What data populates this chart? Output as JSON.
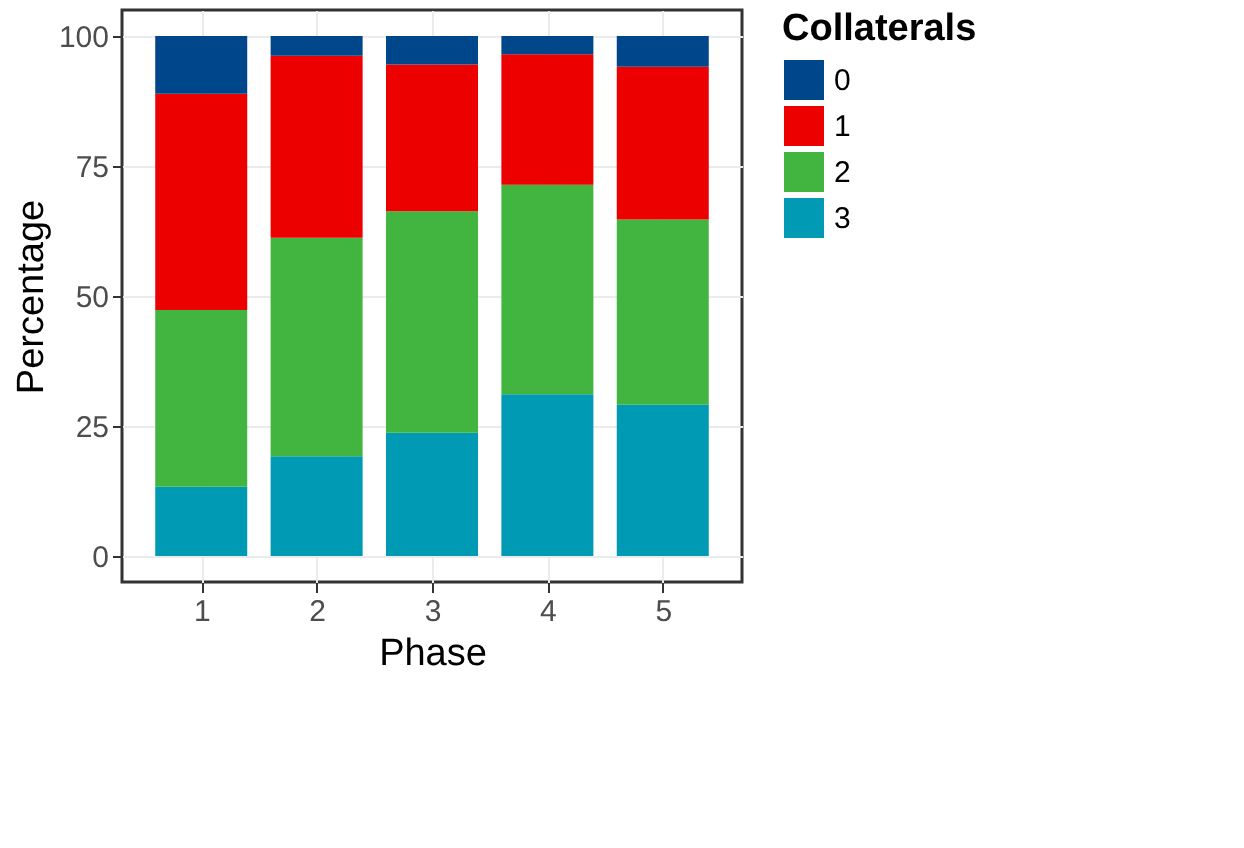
{
  "chart_data": {
    "type": "bar",
    "stacked": true,
    "xlabel": "Phase",
    "ylabel": "Percentage",
    "legend_title": "Collaterals",
    "legend": "right",
    "categories": [
      "1",
      "2",
      "3",
      "4",
      "5"
    ],
    "series": [
      {
        "name": "3",
        "color": "#009ab4",
        "values": [
          13.3,
          19.2,
          23.7,
          31.1,
          29.1
        ]
      },
      {
        "name": "2",
        "color": "#42b540",
        "values": [
          34.0,
          42.0,
          42.6,
          40.3,
          35.6
        ]
      },
      {
        "name": "1",
        "color": "#ed0000",
        "values": [
          41.6,
          35.0,
          28.2,
          25.1,
          29.4
        ]
      },
      {
        "name": "0",
        "color": "#00468b",
        "values": [
          11.1,
          3.8,
          5.5,
          3.5,
          5.9
        ]
      }
    ],
    "ylim": [
      -5,
      105
    ],
    "yticks": [
      0,
      25,
      50,
      75,
      100
    ],
    "grid": true
  }
}
